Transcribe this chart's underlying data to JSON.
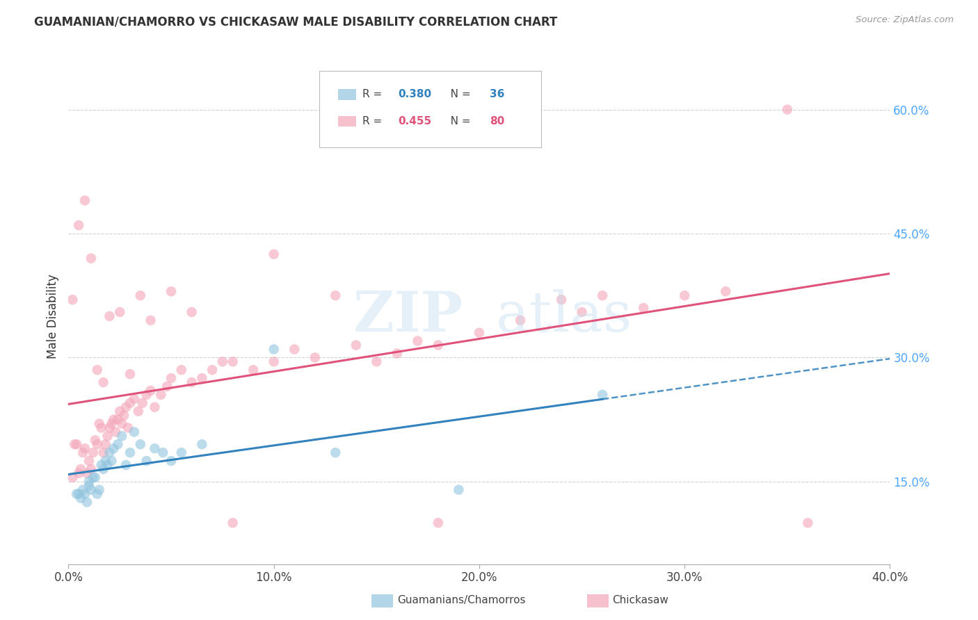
{
  "title": "GUAMANIAN/CHAMORRO VS CHICKASAW MALE DISABILITY CORRELATION CHART",
  "source": "Source: ZipAtlas.com",
  "ylabel_label": "Male Disability",
  "legend1_label": "Guamanians/Chamorros",
  "legend2_label": "Chickasaw",
  "R1": 0.38,
  "N1": 36,
  "R2": 0.455,
  "N2": 80,
  "color_blue": "#92c5de",
  "color_pink": "#f4a6b8",
  "line_color_blue": "#3182bd",
  "line_color_pink": "#e0527a",
  "xmin": 0.0,
  "xmax": 0.4,
  "ymin": 0.05,
  "ymax": 0.65,
  "xtick_vals": [
    0.0,
    0.1,
    0.2,
    0.3,
    0.4
  ],
  "xtick_labels": [
    "0.0%",
    "10.0%",
    "20.0%",
    "30.0%",
    "40.0%"
  ],
  "ytick_vals": [
    0.15,
    0.3,
    0.45,
    0.6
  ],
  "ytick_labels": [
    "15.0%",
    "30.0%",
    "45.0%",
    "60.0%"
  ],
  "blue_scatter_x": [
    0.004,
    0.005,
    0.006,
    0.007,
    0.008,
    0.009,
    0.01,
    0.01,
    0.011,
    0.012,
    0.013,
    0.014,
    0.015,
    0.016,
    0.017,
    0.018,
    0.019,
    0.02,
    0.021,
    0.022,
    0.024,
    0.026,
    0.028,
    0.03,
    0.032,
    0.035,
    0.038,
    0.042,
    0.046,
    0.05,
    0.055,
    0.065,
    0.1,
    0.13,
    0.19,
    0.26
  ],
  "blue_scatter_y": [
    0.135,
    0.135,
    0.13,
    0.14,
    0.135,
    0.125,
    0.145,
    0.15,
    0.14,
    0.155,
    0.155,
    0.135,
    0.14,
    0.17,
    0.165,
    0.175,
    0.17,
    0.185,
    0.175,
    0.19,
    0.195,
    0.205,
    0.17,
    0.185,
    0.21,
    0.195,
    0.175,
    0.19,
    0.185,
    0.175,
    0.185,
    0.195,
    0.31,
    0.185,
    0.14,
    0.255
  ],
  "pink_scatter_x": [
    0.002,
    0.003,
    0.004,
    0.005,
    0.006,
    0.007,
    0.008,
    0.009,
    0.01,
    0.011,
    0.012,
    0.013,
    0.014,
    0.015,
    0.016,
    0.017,
    0.018,
    0.019,
    0.02,
    0.021,
    0.022,
    0.023,
    0.024,
    0.025,
    0.026,
    0.027,
    0.028,
    0.029,
    0.03,
    0.032,
    0.034,
    0.036,
    0.038,
    0.04,
    0.042,
    0.045,
    0.048,
    0.05,
    0.055,
    0.06,
    0.065,
    0.07,
    0.075,
    0.08,
    0.09,
    0.1,
    0.11,
    0.12,
    0.14,
    0.15,
    0.16,
    0.17,
    0.18,
    0.2,
    0.22,
    0.24,
    0.26,
    0.28,
    0.3,
    0.32,
    0.002,
    0.005,
    0.008,
    0.011,
    0.014,
    0.017,
    0.02,
    0.025,
    0.03,
    0.035,
    0.04,
    0.05,
    0.06,
    0.08,
    0.1,
    0.13,
    0.18,
    0.25,
    0.35,
    0.36
  ],
  "pink_scatter_y": [
    0.155,
    0.195,
    0.195,
    0.16,
    0.165,
    0.185,
    0.19,
    0.16,
    0.175,
    0.165,
    0.185,
    0.2,
    0.195,
    0.22,
    0.215,
    0.185,
    0.195,
    0.205,
    0.215,
    0.22,
    0.225,
    0.21,
    0.225,
    0.235,
    0.22,
    0.23,
    0.24,
    0.215,
    0.245,
    0.25,
    0.235,
    0.245,
    0.255,
    0.26,
    0.24,
    0.255,
    0.265,
    0.275,
    0.285,
    0.27,
    0.275,
    0.285,
    0.295,
    0.295,
    0.285,
    0.295,
    0.31,
    0.3,
    0.315,
    0.295,
    0.305,
    0.32,
    0.315,
    0.33,
    0.345,
    0.37,
    0.375,
    0.36,
    0.375,
    0.38,
    0.37,
    0.46,
    0.49,
    0.42,
    0.285,
    0.27,
    0.35,
    0.355,
    0.28,
    0.375,
    0.345,
    0.38,
    0.355,
    0.1,
    0.425,
    0.375,
    0.1,
    0.355,
    0.6,
    0.1
  ]
}
